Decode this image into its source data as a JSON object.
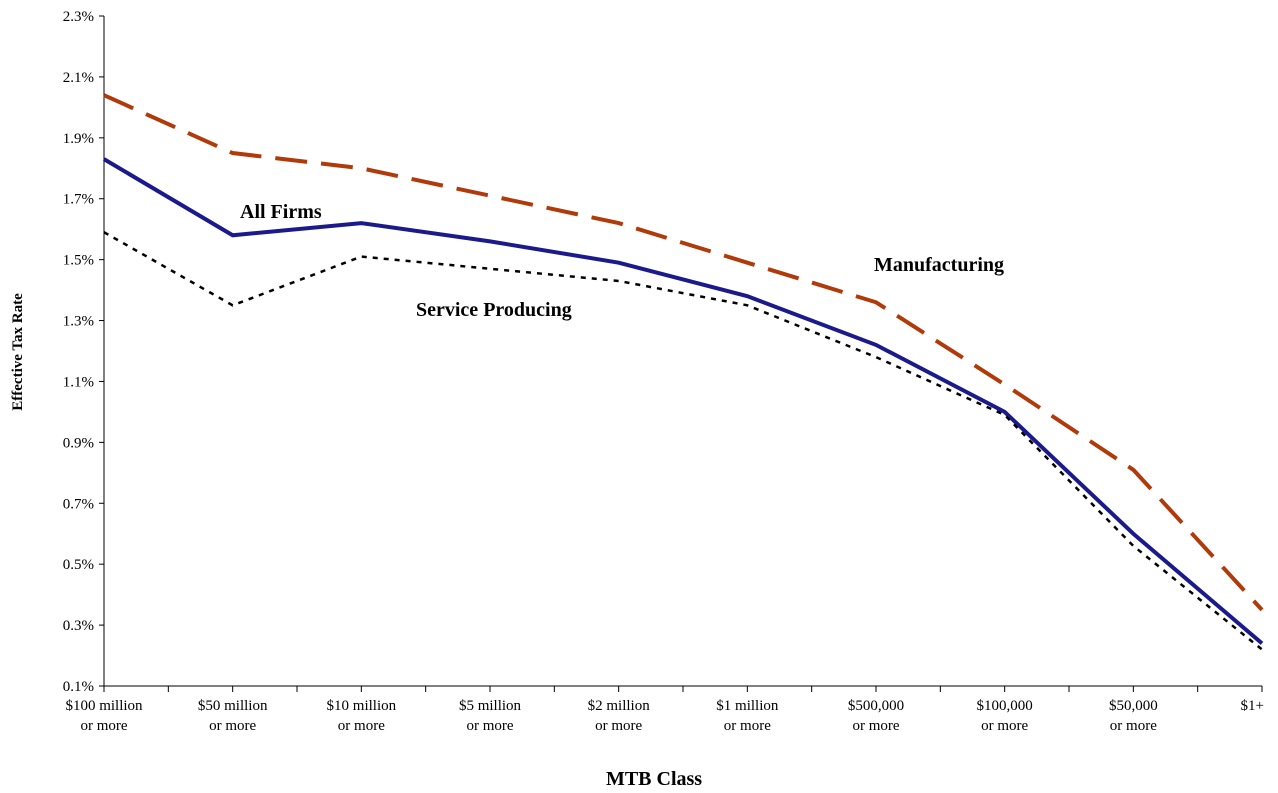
{
  "chart_data": {
    "type": "line",
    "xlabel": "MTB Class",
    "ylabel": "Effective Tax Rate",
    "categories": [
      [
        "$100 million",
        "or more"
      ],
      [
        "$50 million",
        "or more"
      ],
      [
        "$10 million",
        "or more"
      ],
      [
        "$5 million",
        "or more"
      ],
      [
        "$2 million",
        "or more"
      ],
      [
        "$1 million",
        "or more"
      ],
      [
        "$500,000",
        "or more"
      ],
      [
        "$100,000",
        "or more"
      ],
      [
        "$50,000",
        "or more"
      ],
      [
        "$1+",
        ""
      ]
    ],
    "yticks": [
      "0.1%",
      "0.3%",
      "0.5%",
      "0.7%",
      "0.9%",
      "1.1%",
      "1.3%",
      "1.5%",
      "1.7%",
      "1.9%",
      "2.1%",
      "2.3%"
    ],
    "ylim": [
      0.1,
      2.3
    ],
    "grid": false,
    "series": [
      {
        "name": "Manufacturing",
        "color": "#b03a0a",
        "style": "dashed",
        "values": [
          2.04,
          1.85,
          1.8,
          1.71,
          1.62,
          1.49,
          1.36,
          1.09,
          0.81,
          0.35
        ]
      },
      {
        "name": "All Firms",
        "color": "#1a1a8c",
        "style": "solid",
        "values": [
          1.83,
          1.58,
          1.62,
          1.56,
          1.49,
          1.38,
          1.22,
          1.0,
          0.6,
          0.24
        ]
      },
      {
        "name": "Service Producing",
        "color": "#000000",
        "style": "dotted",
        "values": [
          1.59,
          1.35,
          1.51,
          1.47,
          1.43,
          1.35,
          1.18,
          0.99,
          0.56,
          0.22
        ]
      }
    ]
  }
}
